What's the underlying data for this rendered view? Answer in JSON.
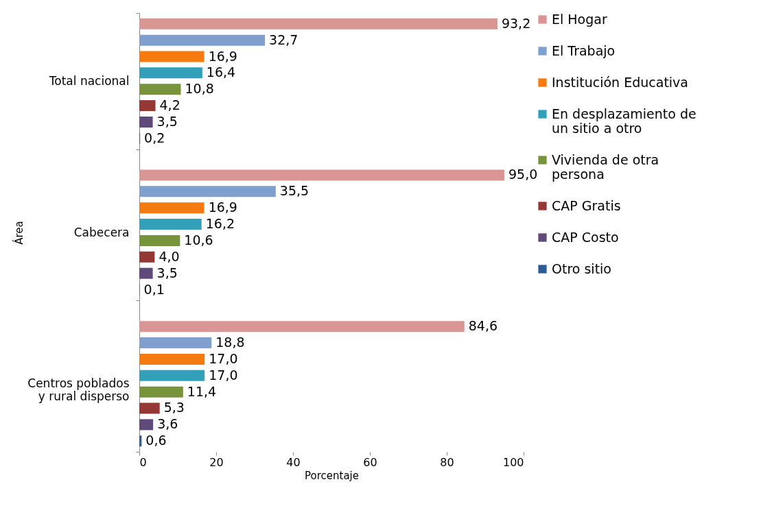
{
  "chart_data": {
    "type": "bar",
    "orientation": "horizontal",
    "categories": [
      "Total nacional",
      "Cabecera",
      "Centros poblados y rural disperso"
    ],
    "series": [
      {
        "name": "El Hogar",
        "color": "#d99694",
        "values": [
          93.2,
          95.0,
          84.6
        ],
        "value_labels": [
          "93,2",
          "95,0",
          "84,6"
        ]
      },
      {
        "name": "El Trabajo",
        "color": "#7f9fcf",
        "values": [
          32.7,
          35.5,
          18.8
        ],
        "value_labels": [
          "32,7",
          "35,5",
          "18,8"
        ]
      },
      {
        "name": "Institución Educativa",
        "color": "#f57a10",
        "values": [
          16.9,
          16.9,
          17.0
        ],
        "value_labels": [
          "16,9",
          "16,9",
          "17,0"
        ]
      },
      {
        "name": "En desplazamiento de un sitio a otro",
        "color": "#31a0b8",
        "values": [
          16.4,
          16.2,
          17.0
        ],
        "value_labels": [
          "16,4",
          "16,2",
          "17,0"
        ]
      },
      {
        "name": "Vivienda de otra persona",
        "color": "#77933c",
        "values": [
          10.8,
          10.6,
          11.4
        ],
        "value_labels": [
          "10,8",
          "10,6",
          "11,4"
        ]
      },
      {
        "name": "CAP Gratis",
        "color": "#953735",
        "values": [
          4.2,
          4.0,
          5.3
        ],
        "value_labels": [
          "4,2",
          "4,0",
          "5,3"
        ]
      },
      {
        "name": "CAP Costo",
        "color": "#604a7b",
        "values": [
          3.5,
          3.5,
          3.6
        ],
        "value_labels": [
          "3,5",
          "3,5",
          "3,6"
        ]
      },
      {
        "name": "Otro sitio",
        "color": "#2e5a95",
        "values": [
          0.2,
          0.1,
          0.6
        ],
        "value_labels": [
          "0,2",
          "0,1",
          "0,6"
        ]
      }
    ],
    "xlabel": "Porcentaje",
    "ylabel": "Área",
    "xlim": [
      0,
      100
    ],
    "xticks": [
      0,
      20,
      40,
      60,
      80,
      100
    ],
    "legend": "right",
    "grid": false
  }
}
